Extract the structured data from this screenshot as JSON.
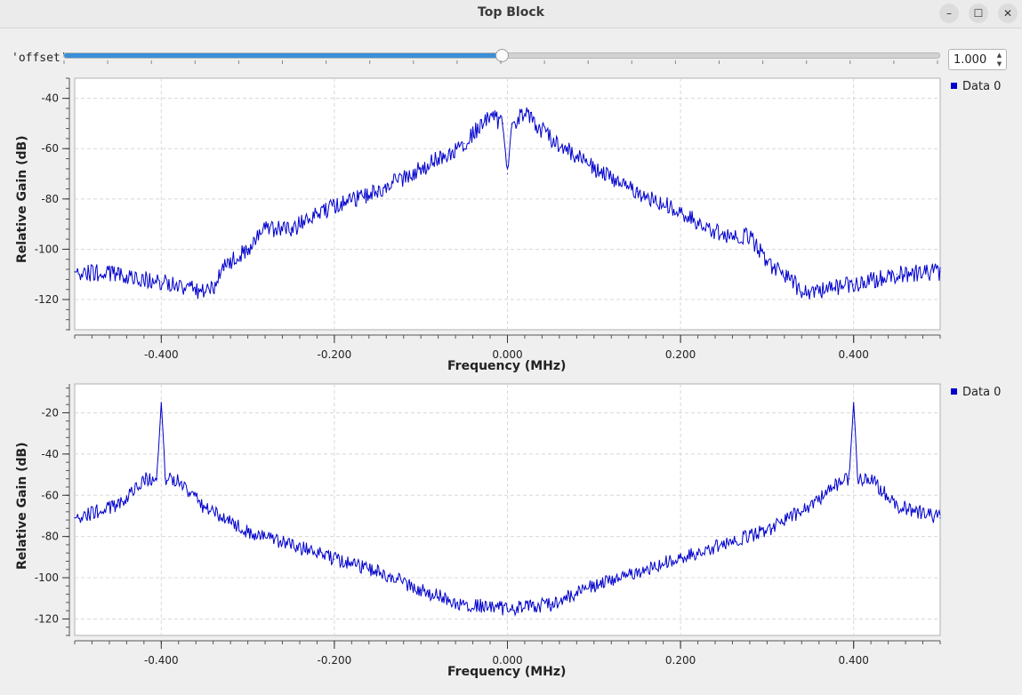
{
  "window": {
    "title": "Top Block",
    "buttons": {
      "minimize": "–",
      "maximize": "☐",
      "close": "✕"
    }
  },
  "slider": {
    "label": "'offset'",
    "value": "1.000",
    "fraction": 0.5
  },
  "colors": {
    "trace": "#0000cc",
    "slider_fill": "#3a8fd9"
  },
  "chart_data": [
    {
      "type": "line",
      "xlabel": "Frequency (MHz)",
      "ylabel": "Relative Gain (dB)",
      "xlim": [
        -0.5,
        0.5
      ],
      "ylim": [
        -132,
        -32
      ],
      "xticks": [
        -0.4,
        -0.2,
        0.0,
        0.2,
        0.4
      ],
      "xtick_labels": [
        "-0.400",
        "-0.200",
        "0.000",
        "0.200",
        "0.400"
      ],
      "yticks": [
        -40,
        -60,
        -80,
        -100,
        -120
      ],
      "ytick_labels": [
        "-40",
        "-60",
        "-80",
        "-100",
        "-120"
      ],
      "grid": true,
      "legend": "top-right",
      "series": [
        {
          "name": "Data 0",
          "x": [
            -0.5,
            -0.45,
            -0.4,
            -0.35,
            -0.34,
            -0.33,
            -0.3,
            -0.28,
            -0.25,
            -0.2,
            -0.15,
            -0.1,
            -0.05,
            -0.02,
            -0.005,
            0.0,
            0.005,
            0.02,
            0.05,
            0.1,
            0.15,
            0.2,
            0.25,
            0.28,
            0.3,
            0.33,
            0.34,
            0.35,
            0.4,
            0.45,
            0.5
          ],
          "y": [
            -109,
            -110,
            -113,
            -117,
            -116,
            -108,
            -100,
            -92,
            -92,
            -83,
            -77,
            -68,
            -58,
            -47,
            -50,
            -70,
            -50,
            -46,
            -56,
            -68,
            -77,
            -85,
            -95,
            -95,
            -105,
            -113,
            -117,
            -117,
            -114,
            -110,
            -109
          ]
        }
      ]
    },
    {
      "type": "line",
      "xlabel": "Frequency (MHz)",
      "ylabel": "Relative Gain (dB)",
      "xlim": [
        -0.5,
        0.5
      ],
      "ylim": [
        -128,
        -6
      ],
      "xticks": [
        -0.4,
        -0.2,
        0.0,
        0.2,
        0.4
      ],
      "xtick_labels": [
        "-0.400",
        "-0.200",
        "0.000",
        "0.200",
        "0.400"
      ],
      "yticks": [
        -20,
        -40,
        -60,
        -80,
        -100,
        -120
      ],
      "ytick_labels": [
        "-20",
        "-40",
        "-60",
        "-80",
        "-100",
        "-120"
      ],
      "grid": true,
      "legend": "top-right",
      "series": [
        {
          "name": "Data 0",
          "x": [
            -0.5,
            -0.45,
            -0.42,
            -0.405,
            -0.4,
            -0.395,
            -0.38,
            -0.35,
            -0.3,
            -0.25,
            -0.2,
            -0.15,
            -0.1,
            -0.05,
            0.0,
            0.05,
            0.1,
            0.15,
            0.2,
            0.25,
            0.3,
            0.35,
            0.38,
            0.395,
            0.4,
            0.405,
            0.42,
            0.45,
            0.5
          ],
          "y": [
            -71,
            -65,
            -52,
            -52,
            -15,
            -52,
            -53,
            -66,
            -78,
            -84,
            -91,
            -97,
            -106,
            -113,
            -115,
            -113,
            -104,
            -97,
            -90,
            -84,
            -77,
            -65,
            -55,
            -52,
            -15,
            -52,
            -52,
            -65,
            -71
          ]
        }
      ]
    }
  ]
}
